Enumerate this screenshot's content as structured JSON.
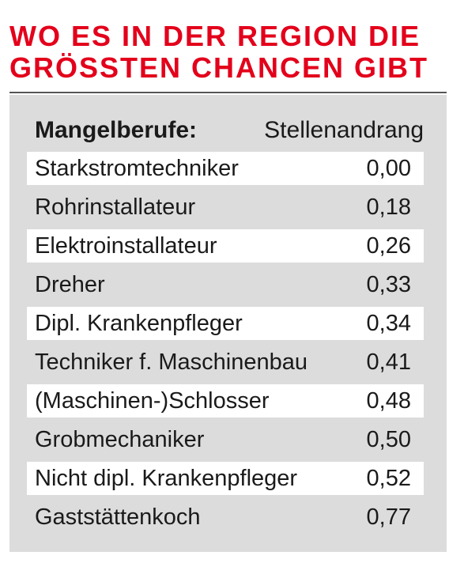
{
  "headline": {
    "line1": "WO ES IN DER REGION DIE",
    "line2": "GRÖSSTEN CHANCEN GIBT"
  },
  "table": {
    "header": {
      "profession": "Mangelberufe:",
      "value": "Stellenandrang"
    },
    "rows": [
      {
        "profession": "Starkstromtechniker",
        "value": "0,00"
      },
      {
        "profession": "Rohrinstallateur",
        "value": "0,18"
      },
      {
        "profession": "Elektroinstallateur",
        "value": "0,26"
      },
      {
        "profession": "Dreher",
        "value": "0,33"
      },
      {
        "profession": "Dipl. Krankenpfleger",
        "value": "0,34"
      },
      {
        "profession": "Techniker f. Maschinenbau",
        "value": "0,41"
      },
      {
        "profession": "(Maschinen-)Schlosser",
        "value": "0,48"
      },
      {
        "profession": "Grobmechaniker",
        "value": "0,50"
      },
      {
        "profession": "Nicht dipl. Krankenpfleger",
        "value": "0,52"
      },
      {
        "profession": "Gaststättenkoch",
        "value": "0,77"
      }
    ]
  },
  "colors": {
    "accent": "#e3001b",
    "panel": "#dcdcdc",
    "row_highlight": "#ffffff"
  }
}
